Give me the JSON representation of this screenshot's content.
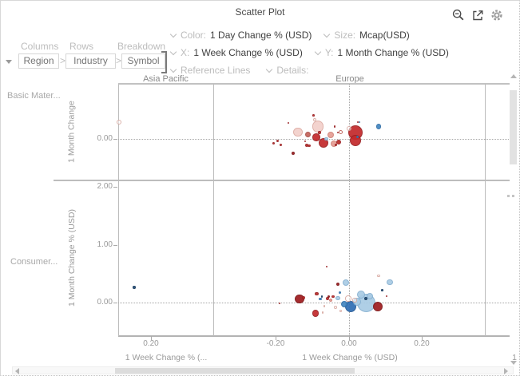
{
  "header": {
    "title": "Scatter Plot",
    "icons": {
      "zoom_out": "zoom-out",
      "export": "export",
      "settings": "gear"
    }
  },
  "shelf": {
    "columns_label": "Columns",
    "rows_label": "Rows",
    "breakdown_label": "Breakdown",
    "separator": ">",
    "breadcrumb": [
      "Region",
      "Industry",
      "Symbol"
    ]
  },
  "encodings": {
    "color_label": "Color:",
    "color_value": "1 Day Change % (USD)",
    "size_label": "Size:",
    "size_value": "Mcap(USD)",
    "x_label": "X:",
    "x_value": "1 Week Change % (USD)",
    "y_label": "Y:",
    "y_value": "1 Month Change % (USD)",
    "reference_lines_label": "Reference Lines",
    "details_label": "Details:"
  },
  "chart_data": {
    "type": "scatter",
    "title": "Scatter Plot",
    "facet": {
      "columns": [
        "Asia Pacific",
        "Europe"
      ],
      "rows": [
        "Basic Mater...",
        "Consumer..."
      ]
    },
    "x_axis": {
      "title_ap": "1 Week Change % (...",
      "title_eu": "1 Week Change % (USD)",
      "title_next_partial": "1",
      "ap_ticks": [
        "0.20"
      ],
      "eu_ticks": [
        "-0.20",
        "0.00",
        "0.20"
      ],
      "eu_range": [
        -0.37,
        0.37
      ],
      "ap_range": [
        0.11,
        0.37
      ]
    },
    "y_axis": {
      "row1_title": "1 Month Change",
      "row2_title": "1 Month Change % (USD)",
      "row1_ticks": [
        "0.00"
      ],
      "row2_ticks": [
        "2.00",
        "1.00",
        "0.00"
      ],
      "row1_range": [
        -0.72,
        0.95
      ],
      "row2_range": [
        -0.57,
        2.09
      ]
    },
    "reference_lines": {
      "x": 0.0,
      "y": 0.0,
      "style": "dotted"
    },
    "grid": "facet-borders-only",
    "palette": {
      "strongRed": {
        "f": "#c3292b",
        "e": "#9a1f21"
      },
      "darkRed": {
        "f": "#9e1b1e",
        "e": "#7c1315"
      },
      "red": {
        "f": "#b92c28",
        "e": "#9a1f21"
      },
      "mutedRed": {
        "f": "#c4635b",
        "e": "#a84d46"
      },
      "salmon": {
        "f": "#e59d93",
        "e": "#cf8177"
      },
      "palePink": {
        "f": "#f3d0ca",
        "e": "#ddaca4"
      },
      "paleRing": {
        "f": "rgba(255,255,255,0.55)",
        "e": "#d8aaa2"
      },
      "mutedRing": {
        "f": "rgba(255,255,255,0.55)",
        "e": "#bb5d55"
      },
      "lightBlue": {
        "f": "#a9cbe4",
        "e": "#85afd0"
      },
      "steelBlue": {
        "f": "#4285c0",
        "e": "#2f6da6"
      },
      "strongBlue": {
        "f": "#2e6db4",
        "e": "#235691"
      },
      "navy": {
        "f": "#1f4e79",
        "e": "#17395c"
      }
    },
    "panels": [
      {
        "row": 0,
        "col": "ap",
        "points": [
          {
            "x": 0.113,
            "y": 0.29,
            "r": 3,
            "c": "paleRing"
          }
        ]
      },
      {
        "row": 0,
        "col": "eu",
        "points": [
          {
            "x": -0.207,
            "y": -0.08,
            "r": 1.5,
            "c": "red"
          },
          {
            "x": -0.196,
            "y": -0.03,
            "r": 1.5,
            "c": "red"
          },
          {
            "x": -0.187,
            "y": -0.1,
            "r": 1.5,
            "c": "red"
          },
          {
            "x": -0.167,
            "y": 0.28,
            "r": 1.2,
            "c": "red"
          },
          {
            "x": -0.154,
            "y": -0.25,
            "r": 2.2,
            "c": "darkRed"
          },
          {
            "x": -0.141,
            "y": 0.12,
            "r": 5.7,
            "c": "palePink"
          },
          {
            "x": -0.121,
            "y": -0.04,
            "r": 1.3,
            "c": "red"
          },
          {
            "x": -0.117,
            "y": -0.11,
            "r": 2,
            "c": "red"
          },
          {
            "x": -0.11,
            "y": -0.12,
            "r": 1.7,
            "c": "red"
          },
          {
            "x": -0.113,
            "y": 0.08,
            "r": 3.7,
            "c": "mutedRed"
          },
          {
            "x": -0.099,
            "y": 0.41,
            "r": 1.3,
            "c": "red"
          },
          {
            "x": -0.095,
            "y": 0.33,
            "r": 2,
            "c": "paleRing"
          },
          {
            "x": -0.086,
            "y": 0.21,
            "r": 7.3,
            "c": "palePink"
          },
          {
            "x": -0.082,
            "y": 0.11,
            "r": 1.7,
            "c": "red"
          },
          {
            "x": -0.091,
            "y": 0.03,
            "r": 4.7,
            "c": "strongRed"
          },
          {
            "x": -0.071,
            "y": -0.07,
            "r": 6.3,
            "c": "strongRed"
          },
          {
            "x": -0.064,
            "y": 0.0,
            "r": 2.3,
            "c": "lightBlue"
          },
          {
            "x": -0.051,
            "y": 0.07,
            "r": 4.3,
            "c": "salmon"
          },
          {
            "x": -0.043,
            "y": -0.08,
            "r": 4.3,
            "c": "salmon"
          },
          {
            "x": -0.038,
            "y": -0.11,
            "r": 1.5,
            "c": "red"
          },
          {
            "x": -0.04,
            "y": 0.21,
            "r": 1.3,
            "c": "red"
          },
          {
            "x": -0.032,
            "y": 0.11,
            "r": 1.3,
            "c": "red"
          },
          {
            "x": -0.03,
            "y": -0.06,
            "r": 3,
            "c": "red"
          },
          {
            "x": -0.023,
            "y": 0.12,
            "r": 2.5,
            "c": "mutedRing"
          },
          {
            "x": -0.001,
            "y": 0.18,
            "r": 3,
            "c": "paleRing"
          },
          {
            "x": 0.016,
            "y": 0.11,
            "r": 9,
            "c": "strongRed"
          },
          {
            "x": 0.016,
            "y": -0.03,
            "r": 7.3,
            "c": "strongRed"
          },
          {
            "x": 0.021,
            "y": 0.03,
            "r": 1.5,
            "c": "steelBlue"
          },
          {
            "x": 0.023,
            "y": 0.29,
            "r": 1.3,
            "c": "red"
          },
          {
            "x": 0.027,
            "y": 0.29,
            "r": 1.3,
            "c": "steelBlue"
          },
          {
            "x": 0.08,
            "y": 0.21,
            "r": 3.3,
            "c": "steelBlue"
          }
        ]
      },
      {
        "row": 1,
        "col": "ap",
        "points": [
          {
            "x": 0.154,
            "y": 0.26,
            "r": 1.7,
            "c": "navy"
          }
        ]
      },
      {
        "row": 1,
        "col": "eu",
        "points": [
          {
            "x": -0.191,
            "y": -0.01,
            "r": 1,
            "c": "red"
          },
          {
            "x": -0.137,
            "y": 0.06,
            "r": 5.7,
            "c": "darkRed"
          },
          {
            "x": -0.126,
            "y": 0.08,
            "r": 2,
            "c": "red"
          },
          {
            "x": -0.093,
            "y": -0.19,
            "r": 4.3,
            "c": "strongRed"
          },
          {
            "x": -0.089,
            "y": 0.15,
            "r": 2.3,
            "c": "red"
          },
          {
            "x": -0.08,
            "y": 0.06,
            "r": 1.7,
            "c": "steelBlue"
          },
          {
            "x": -0.075,
            "y": 0.1,
            "r": 1.3,
            "c": "navy"
          },
          {
            "x": -0.073,
            "y": -0.17,
            "r": 1.3,
            "c": "paleRing"
          },
          {
            "x": -0.069,
            "y": -0.06,
            "r": 1.3,
            "c": "paleRing"
          },
          {
            "x": -0.062,
            "y": 0.62,
            "r": 1.3,
            "c": "red"
          },
          {
            "x": -0.06,
            "y": 0.07,
            "r": 2,
            "c": "strongRed"
          },
          {
            "x": -0.056,
            "y": 0.11,
            "r": 1.5,
            "c": "darkRed"
          },
          {
            "x": -0.051,
            "y": 0.04,
            "r": 2,
            "c": "salmon"
          },
          {
            "x": -0.045,
            "y": 0.1,
            "r": 1.7,
            "c": "strongRed"
          },
          {
            "x": -0.038,
            "y": -0.08,
            "r": 2,
            "c": "paleRing"
          },
          {
            "x": -0.032,
            "y": 0.32,
            "r": 2,
            "c": "darkRed"
          },
          {
            "x": -0.032,
            "y": 0.08,
            "r": 2.7,
            "c": "lightBlue"
          },
          {
            "x": -0.027,
            "y": 0.17,
            "r": 1.5,
            "c": "steelBlue"
          },
          {
            "x": -0.023,
            "y": -0.14,
            "r": 1.5,
            "c": "paleRing"
          },
          {
            "x": -0.014,
            "y": -0.03,
            "r": 4,
            "c": "steelBlue"
          },
          {
            "x": -0.01,
            "y": 0.35,
            "r": 4,
            "c": "lightBlue"
          },
          {
            "x": -0.003,
            "y": 0.07,
            "r": 3.7,
            "c": "paleRing"
          },
          {
            "x": 0.003,
            "y": -0.07,
            "r": 7.3,
            "c": "strongBlue"
          },
          {
            "x": 0.014,
            "y": 0.04,
            "r": 2.7,
            "c": "paleRing"
          },
          {
            "x": 0.021,
            "y": 0.01,
            "r": 5,
            "c": "lightBlue"
          },
          {
            "x": 0.032,
            "y": 0.14,
            "r": 5,
            "c": "lightBlue"
          },
          {
            "x": 0.045,
            "y": 0.0,
            "r": 11.5,
            "c": "lightBlue"
          },
          {
            "x": 0.045,
            "y": 0.07,
            "r": 2,
            "c": "navy"
          },
          {
            "x": 0.056,
            "y": 0.11,
            "r": 4,
            "c": "lightBlue"
          },
          {
            "x": 0.078,
            "y": -0.07,
            "r": 6,
            "c": "darkRed"
          },
          {
            "x": 0.08,
            "y": 0.46,
            "r": 1.7,
            "c": "paleRing"
          },
          {
            "x": 0.089,
            "y": 0.21,
            "r": 1.3,
            "c": "navy"
          },
          {
            "x": 0.102,
            "y": 0.11,
            "r": 1.3,
            "c": "red"
          },
          {
            "x": 0.11,
            "y": 0.35,
            "r": 3.7,
            "c": "lightBlue"
          }
        ]
      }
    ]
  }
}
